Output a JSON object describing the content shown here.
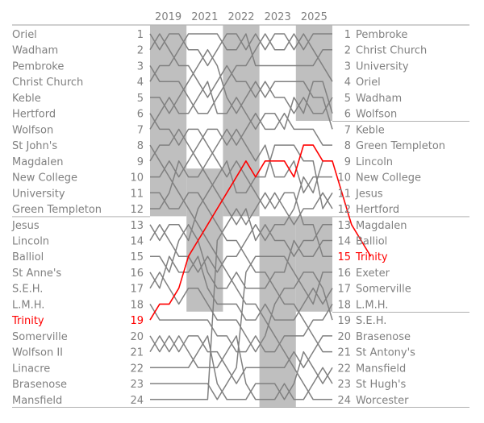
{
  "chart_data": {
    "type": "line",
    "subtype": "bumps-chart",
    "title": "",
    "xlabel": "",
    "ylabel": "",
    "x": [
      "2019",
      "2021",
      "2022",
      "2023",
      "2025"
    ],
    "ylim": [
      1,
      24
    ],
    "y_direction": "rank-descending",
    "grid": false,
    "legend": "none",
    "highlight_color": "#ff0000",
    "line_color": "#808080",
    "band_color": "#bfbfbf",
    "text_color": "#808080",
    "ranks": [
      "1",
      "2",
      "3",
      "4",
      "5",
      "6",
      "7",
      "8",
      "9",
      "10",
      "11",
      "12",
      "13",
      "14",
      "15",
      "16",
      "17",
      "18",
      "19",
      "20",
      "21",
      "22",
      "23",
      "24"
    ],
    "start_order": [
      "Oriel",
      "Wadham",
      "Pembroke",
      "Christ Church",
      "Keble",
      "Hertford",
      "Wolfson",
      "St John's",
      "Magdalen",
      "New College",
      "University",
      "Green Templeton",
      "Jesus",
      "Lincoln",
      "Balliol",
      "St Anne's",
      "S.E.H.",
      "L.M.H.",
      "Trinity",
      "Somerville",
      "Wolfson II",
      "Linacre",
      "Brasenose",
      "Mansfield"
    ],
    "end_order": [
      "Pembroke",
      "Christ Church",
      "University",
      "Oriel",
      "Wadham",
      "Wolfson",
      "Keble",
      "Green Templeton",
      "Lincoln",
      "New College",
      "Jesus",
      "Hertford",
      "Magdalen",
      "Balliol",
      "Trinity",
      "Exeter",
      "Somerville",
      "L.M.H.",
      "S.E.H.",
      "Brasenose",
      "St Antony's",
      "Mansfield",
      "St Hugh's",
      "Worcester"
    ],
    "highlight_series": {
      "name": "Trinity",
      "positions": [
        19,
        18,
        18,
        17,
        15,
        14,
        13,
        12,
        11,
        10,
        9,
        10,
        9,
        9,
        9,
        10,
        8,
        8,
        9,
        9,
        11,
        13,
        14,
        15
      ]
    },
    "series": [
      {
        "start": 1,
        "positions": [
          1,
          2,
          1,
          1,
          2,
          2,
          3,
          2,
          1,
          1,
          2,
          1,
          2,
          1,
          1,
          2,
          1,
          2,
          3,
          4
        ]
      },
      {
        "start": 2,
        "positions": [
          2,
          1,
          2,
          3,
          3,
          4,
          5,
          4,
          3,
          4,
          4,
          5,
          4,
          5,
          5,
          6,
          5,
          6,
          6,
          5
        ]
      },
      {
        "start": 3,
        "positions": [
          3,
          4,
          4,
          4,
          5,
          6,
          6,
          5,
          4,
          3,
          3,
          2,
          1,
          2,
          2,
          1,
          2,
          1,
          1,
          1
        ]
      },
      {
        "start": 4,
        "positions": [
          4,
          3,
          3,
          2,
          1,
          1,
          1,
          1,
          2,
          2,
          1,
          3,
          3,
          3,
          3,
          3,
          3,
          3,
          2,
          2
        ]
      },
      {
        "start": 5,
        "positions": [
          5,
          5,
          6,
          5,
          4,
          3,
          2,
          3,
          5,
          6,
          5,
          4,
          5,
          4,
          4,
          4,
          4,
          5,
          5,
          7
        ]
      },
      {
        "start": 6,
        "positions": [
          6,
          7,
          7,
          8,
          7,
          7,
          8,
          9,
          10,
          9,
          10,
          11,
          12,
          11,
          12,
          13,
          12,
          12,
          11,
          12
        ]
      },
      {
        "start": 7,
        "positions": [
          7,
          6,
          5,
          6,
          6,
          5,
          4,
          6,
          6,
          5,
          6,
          7,
          6,
          6,
          7,
          5,
          6,
          4,
          4,
          6
        ]
      },
      {
        "start": 8,
        "positions": [
          8,
          9,
          10,
          11,
          12,
          13,
          14,
          15,
          16,
          17,
          18,
          18,
          19,
          20,
          21,
          22,
          23,
          24,
          24,
          24
        ]
      },
      {
        "start": 9,
        "positions": [
          9,
          8,
          8,
          7,
          8,
          9,
          10,
          11,
          12,
          13,
          12,
          14,
          13,
          14,
          14,
          15,
          14,
          14,
          13,
          13
        ]
      },
      {
        "start": 10,
        "positions": [
          10,
          10,
          9,
          10,
          9,
          8,
          7,
          7,
          8,
          7,
          8,
          9,
          8,
          10,
          10,
          9,
          11,
          10,
          10,
          10
        ]
      },
      {
        "start": 11,
        "positions": [
          11,
          11,
          12,
          12,
          11,
          11,
          12,
          13,
          14,
          14,
          15,
          16,
          16,
          17,
          18,
          18,
          19,
          20,
          21,
          21
        ]
      },
      {
        "start": 12,
        "positions": [
          12,
          12,
          11,
          9,
          10,
          10,
          9,
          8,
          7,
          8,
          7,
          6,
          7,
          7,
          6,
          7,
          7,
          7,
          8,
          8
        ]
      },
      {
        "start": 13,
        "positions": [
          13,
          14,
          13,
          13,
          14,
          12,
          11,
          10,
          9,
          11,
          11,
          10,
          10,
          8,
          8,
          8,
          9,
          9,
          12,
          11
        ]
      },
      {
        "start": 14,
        "positions": [
          14,
          13,
          14,
          15,
          15,
          16,
          15,
          16,
          15,
          15,
          14,
          13,
          14,
          13,
          13,
          12,
          10,
          11,
          9,
          9
        ]
      },
      {
        "start": 15,
        "positions": [
          15,
          15,
          16,
          14,
          13,
          14,
          16,
          17,
          17,
          16,
          17,
          17,
          17,
          16,
          16,
          14,
          15,
          15,
          14,
          14
        ]
      },
      {
        "start": 16,
        "positions": [
          16,
          17,
          15,
          16,
          16,
          15,
          17,
          18,
          18,
          18,
          19,
          19,
          18,
          19,
          19,
          19,
          18,
          17,
          18,
          17
        ]
      },
      {
        "start": 17,
        "positions": [
          17,
          16,
          17,
          18,
          17,
          17,
          18,
          19,
          19,
          19,
          20,
          21,
          20,
          18,
          17,
          17,
          16,
          16,
          17,
          19
        ]
      },
      {
        "start": 18,
        "positions": [
          18,
          19,
          19,
          19,
          19,
          19,
          19,
          20,
          20,
          21,
          21,
          20,
          21,
          21,
          20,
          20,
          20,
          19,
          19,
          18
        ]
      },
      {
        "start": 20,
        "positions": [
          20,
          21,
          20,
          21,
          20,
          20,
          21,
          21,
          22,
          23,
          22,
          22,
          22,
          22,
          22,
          21,
          22,
          21,
          20,
          20
        ]
      },
      {
        "start": 21,
        "positions": [
          21,
          20,
          21,
          20,
          21,
          22,
          22,
          22,
          21,
          20,
          23,
          24,
          24,
          24,
          23,
          24,
          24,
          23,
          22,
          23
        ]
      },
      {
        "start": 22,
        "positions": [
          22,
          22,
          22,
          22,
          22,
          21,
          20,
          23,
          24,
          24,
          24,
          23,
          23,
          23,
          24,
          23,
          21,
          22,
          23,
          22
        ]
      },
      {
        "start": 23,
        "positions": [
          23,
          23,
          23,
          23,
          23,
          23,
          23,
          24,
          23,
          22,
          16,
          15,
          15,
          15,
          15,
          16,
          17,
          18,
          16,
          16
        ]
      },
      {
        "start": 24,
        "positions": [
          24,
          24,
          24,
          24,
          24,
          24,
          24,
          14,
          13,
          12,
          13,
          12,
          11,
          12,
          11,
          11,
          13,
          13,
          15,
          15
        ]
      }
    ],
    "bands": [
      {
        "year": "2019",
        "start_rank": 1,
        "end_rank": 12
      },
      {
        "year": "2021",
        "start_rank": 10,
        "end_rank": 18
      },
      {
        "year": "2022",
        "start_rank": 1,
        "end_rank": 12
      },
      {
        "year": "2023",
        "start_rank": 13,
        "end_rank": 24
      },
      {
        "year": "2025",
        "start_rank": 1,
        "end_rank": 6
      },
      {
        "year": "2025",
        "start_rank": 13,
        "end_rank": 18
      }
    ],
    "dividers_left_after_rank": [
      12,
      24
    ],
    "dividers_right_after_rank": [
      6,
      12,
      18,
      24
    ]
  }
}
